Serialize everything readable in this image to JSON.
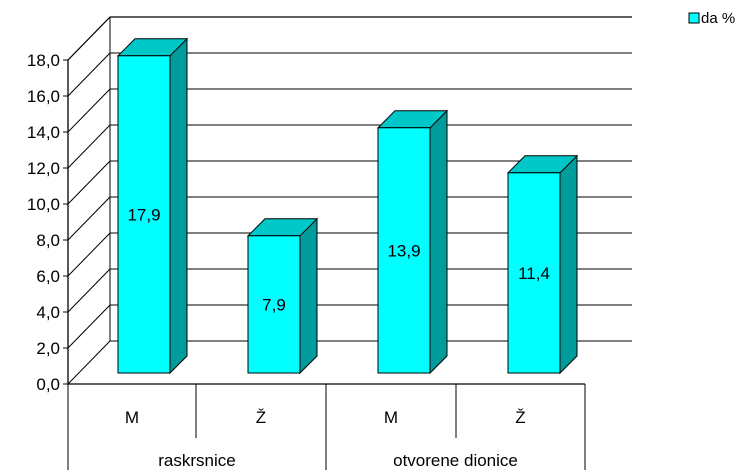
{
  "chart_data": {
    "type": "bar",
    "style": "3d-clustered",
    "groups": [
      {
        "label": "raskrsnice",
        "categories": [
          "M",
          "Ž"
        ]
      },
      {
        "label": "otvorene dionice",
        "categories": [
          "M",
          "Ž"
        ]
      }
    ],
    "series": [
      {
        "name": "da %",
        "values": [
          17.9,
          7.9,
          13.9,
          11.4
        ],
        "data_labels": [
          "17,9",
          "7,9",
          "13,9",
          "11,4"
        ]
      }
    ],
    "ylim": [
      0,
      18
    ],
    "y_ticks": [
      "0,0",
      "2,0",
      "4,0",
      "6,0",
      "8,0",
      "10,0",
      "12,0",
      "14,0",
      "16,0",
      "18,0"
    ],
    "grid": true,
    "legend_position": "top-right",
    "colors": {
      "front": "#00ffff",
      "top": "#00c8c8",
      "side": "#009c9c",
      "outline": "#000000"
    }
  }
}
